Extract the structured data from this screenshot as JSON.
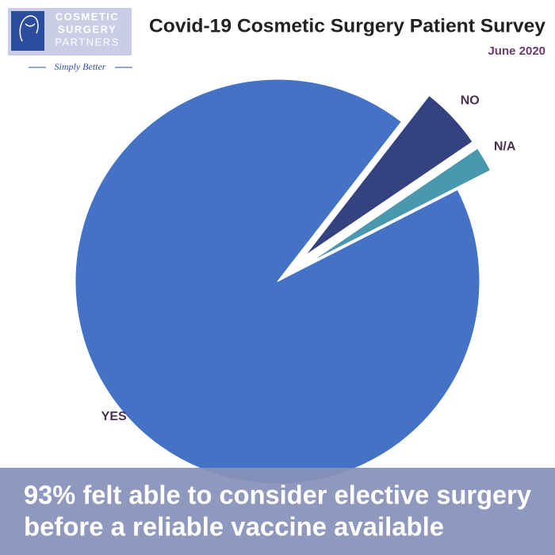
{
  "logo": {
    "lines": [
      "COSMETIC",
      "SURGERY",
      "PARTNERS"
    ],
    "tagline": "Simply Better"
  },
  "chart_data": {
    "type": "pie",
    "title": "Covid-19 Cosmetic Surgery Patient Survey",
    "subtitle": "June 2020",
    "categories": [
      "YES",
      "NO",
      "N/A"
    ],
    "values": [
      93,
      5,
      2
    ],
    "colors": [
      "#4472c4",
      "#34427f",
      "#4a98ad"
    ],
    "caption": [
      "93% felt able to consider elective surgery",
      "before a reliable vaccine available"
    ]
  }
}
